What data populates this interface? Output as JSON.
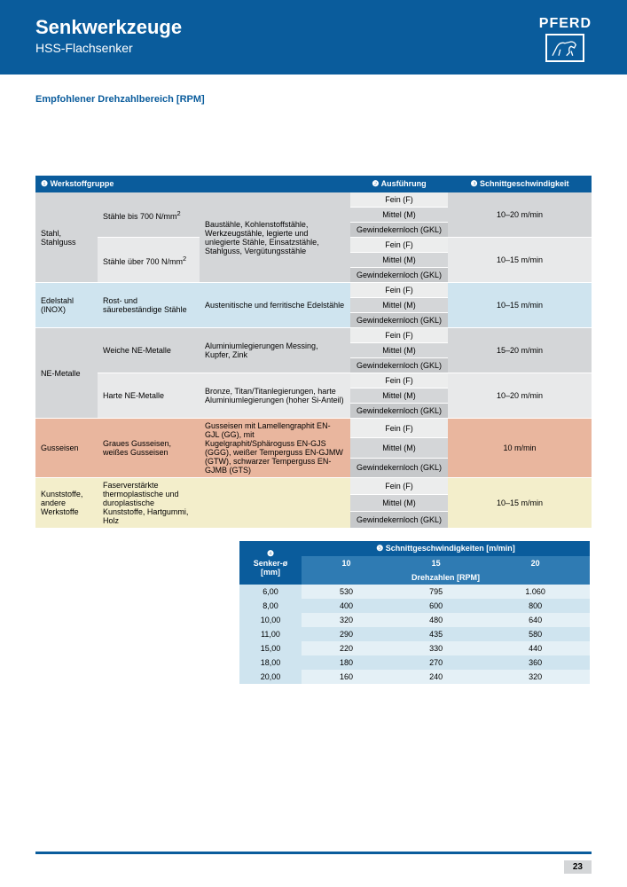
{
  "header": {
    "title": "Senkwerkzeuge",
    "subtitle": "HSS-Flachsenker",
    "brand": "PFERD"
  },
  "section_title": "Empfohlener Drehzahlbereich [RPM]",
  "table1": {
    "head": {
      "c1": "❶ Werkstoffgruppe",
      "c2": "❷ Ausführung",
      "c3": "❸ Schnittgeschwindigkeit"
    },
    "exec": {
      "f": "Fein (F)",
      "m": "Mittel (M)",
      "g": "Gewindekernloch (GKL)"
    },
    "groups": [
      {
        "class": "gray",
        "name": "Stahl, Stahlguss",
        "subs": [
          {
            "mat": "Stähle bis 700 N/mm²",
            "desc": "Baustähle, Kohlenstoffstähle, Werkzeugstähle, legierte und unlegierte Stähle, Einsatzstähle, Stahlguss, Vergütungsstähle",
            "speed": "10–20 m/min"
          },
          {
            "mat": "Stähle über 700 N/mm²",
            "desc": "",
            "speed": "10–15 m/min"
          }
        ]
      },
      {
        "class": "blue",
        "name": "Edelstahl (INOX)",
        "subs": [
          {
            "mat": "Rost- und säurebeständige Stähle",
            "desc": "Austenitische und ferritische Edelstähle",
            "speed": "10–15 m/min"
          }
        ]
      },
      {
        "class": "gray",
        "name": "NE-Metalle",
        "subs": [
          {
            "mat": "Weiche NE-Metalle",
            "desc": "Aluminiumlegierungen Messing, Kupfer, Zink",
            "speed": "15–20 m/min"
          },
          {
            "mat": "Harte NE-Metalle",
            "desc": "Bronze, Titan/Titanlegierungen, harte Aluminiumlegierungen (hoher Si-Anteil)",
            "speed": "10–20 m/min"
          }
        ]
      },
      {
        "class": "orange",
        "name": "Gusseisen",
        "subs": [
          {
            "mat": "Graues Gusseisen, weißes Gusseisen",
            "desc": "Gusseisen mit Lamellengraphit EN-GJL (GG), mit Kugelgraphit/Sphäroguss EN-GJS (GGG), weißer Temperguss EN-GJMW (GTW), schwarzer Temperguss EN-GJMB (GTS)",
            "speed": "10 m/min"
          }
        ]
      },
      {
        "class": "yellow",
        "name": "Kunststoffe, andere Werkstoffe",
        "subs": [
          {
            "mat": "Faserverstärkte thermoplastische und duroplastische Kunststoffe, Hartgummi, Holz",
            "desc": "",
            "speed": "10–15 m/min"
          }
        ]
      }
    ]
  },
  "table2": {
    "head": {
      "c1a": "❹",
      "c1b": "Senker-ø",
      "c1c": "[mm]",
      "c2": "❺ Schnittgeschwindigkeiten [m/min]",
      "c2b": "Drehzahlen [RPM]"
    },
    "speed_cols": [
      "10",
      "15",
      "20"
    ],
    "rows": [
      {
        "dia": "6,00",
        "v": [
          "530",
          "795",
          "1.060"
        ]
      },
      {
        "dia": "8,00",
        "v": [
          "400",
          "600",
          "800"
        ]
      },
      {
        "dia": "10,00",
        "v": [
          "320",
          "480",
          "640"
        ]
      },
      {
        "dia": "11,00",
        "v": [
          "290",
          "435",
          "580"
        ]
      },
      {
        "dia": "15,00",
        "v": [
          "220",
          "330",
          "440"
        ]
      },
      {
        "dia": "18,00",
        "v": [
          "180",
          "270",
          "360"
        ]
      },
      {
        "dia": "20,00",
        "v": [
          "160",
          "240",
          "320"
        ]
      }
    ]
  },
  "page_number": "23"
}
